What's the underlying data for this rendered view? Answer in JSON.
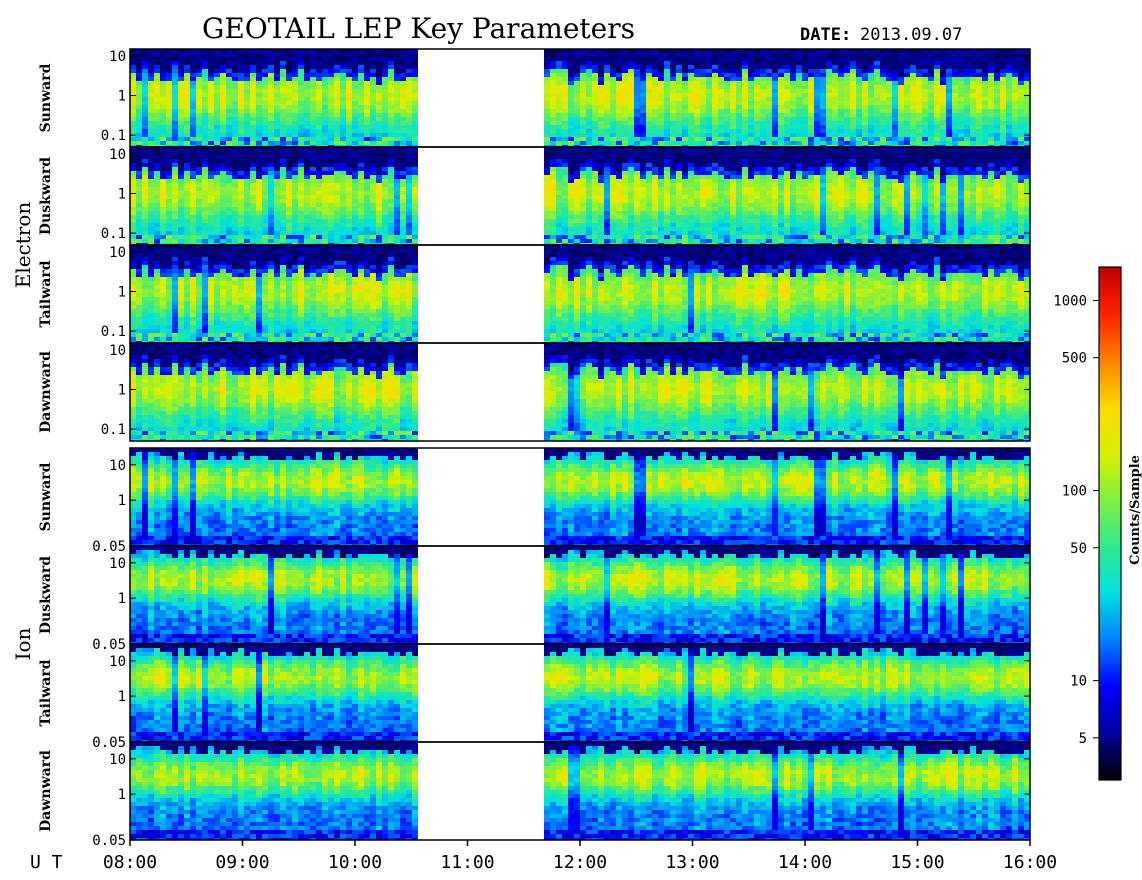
{
  "header": {
    "title": "GEOTAIL LEP Key Parameters",
    "date_label": "DATE:",
    "date_value": "2013.09.07"
  },
  "colors": {
    "colormap": [
      "#000000",
      "#0000a0",
      "#0000ff",
      "#0080ff",
      "#00e0e0",
      "#30e890",
      "#80f040",
      "#d8f000",
      "#ffd800",
      "#ff8000",
      "#ff2000",
      "#c00000"
    ],
    "frame": "#000000",
    "background": "#ffffff"
  },
  "chart_data": {
    "type": "heatmap",
    "x_axis": {
      "prefix": "U T",
      "ticks": [
        "08:00",
        "09:00",
        "10:00",
        "11:00",
        "12:00",
        "13:00",
        "14:00",
        "15:00",
        "16:00"
      ],
      "range": [
        "08:00",
        "16:00"
      ]
    },
    "data_gap": {
      "start": "10:34",
      "end": "11:39"
    },
    "colorbar": {
      "label": "Counts/Sample",
      "scale": "log",
      "range": [
        3,
        1500
      ],
      "ticks": [
        {
          "value": 1000,
          "label": "1000"
        },
        {
          "value": 500,
          "label": "500"
        },
        {
          "value": 100,
          "label": "100"
        },
        {
          "value": 50,
          "label": "50"
        },
        {
          "value": 10,
          "label": "10"
        },
        {
          "value": 5,
          "label": "5"
        }
      ]
    },
    "groups": [
      {
        "name": "Electron",
        "y_range": [
          0.05,
          15
        ],
        "y_ticks": [
          {
            "value": 10,
            "label": "10"
          },
          {
            "value": 1,
            "label": "1"
          },
          {
            "value": 0.1,
            "label": "0.1"
          }
        ],
        "panels": [
          {
            "direction": "Sunward"
          },
          {
            "direction": "Duskward"
          },
          {
            "direction": "Tailward"
          },
          {
            "direction": "Dawnward"
          }
        ]
      },
      {
        "name": "Ion",
        "y_range": [
          0.05,
          30
        ],
        "y_ticks": [
          {
            "value": 10,
            "label": "10"
          },
          {
            "value": 1,
            "label": "1"
          },
          {
            "value": 0.05,
            "label": "0.05"
          }
        ],
        "panels": [
          {
            "direction": "Sunward"
          },
          {
            "direction": "Duskward"
          },
          {
            "direction": "Tailward"
          },
          {
            "direction": "Dawnward"
          }
        ]
      }
    ]
  }
}
